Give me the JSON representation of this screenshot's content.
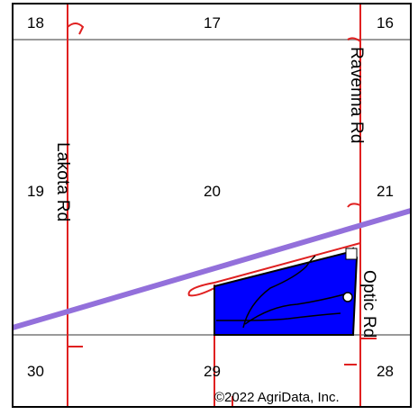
{
  "map": {
    "sections": {
      "s18": "18",
      "s17": "17",
      "s16": "16",
      "s19": "19",
      "s20": "20",
      "s21": "21",
      "s30": "30",
      "s29": "29",
      "s28": "28"
    },
    "roads": {
      "lakota": "Lakota Rd",
      "ravenna": "Ravenna Rd",
      "optic": "Optic Rd"
    },
    "copyright": "©2022 AgriData, Inc.",
    "colors": {
      "field_fill": "#0000ff",
      "field_border": "#000000",
      "road_line": "#e02020",
      "section_line": "#9a9a9a",
      "highway": "#9370db",
      "frame": "#000000"
    }
  }
}
